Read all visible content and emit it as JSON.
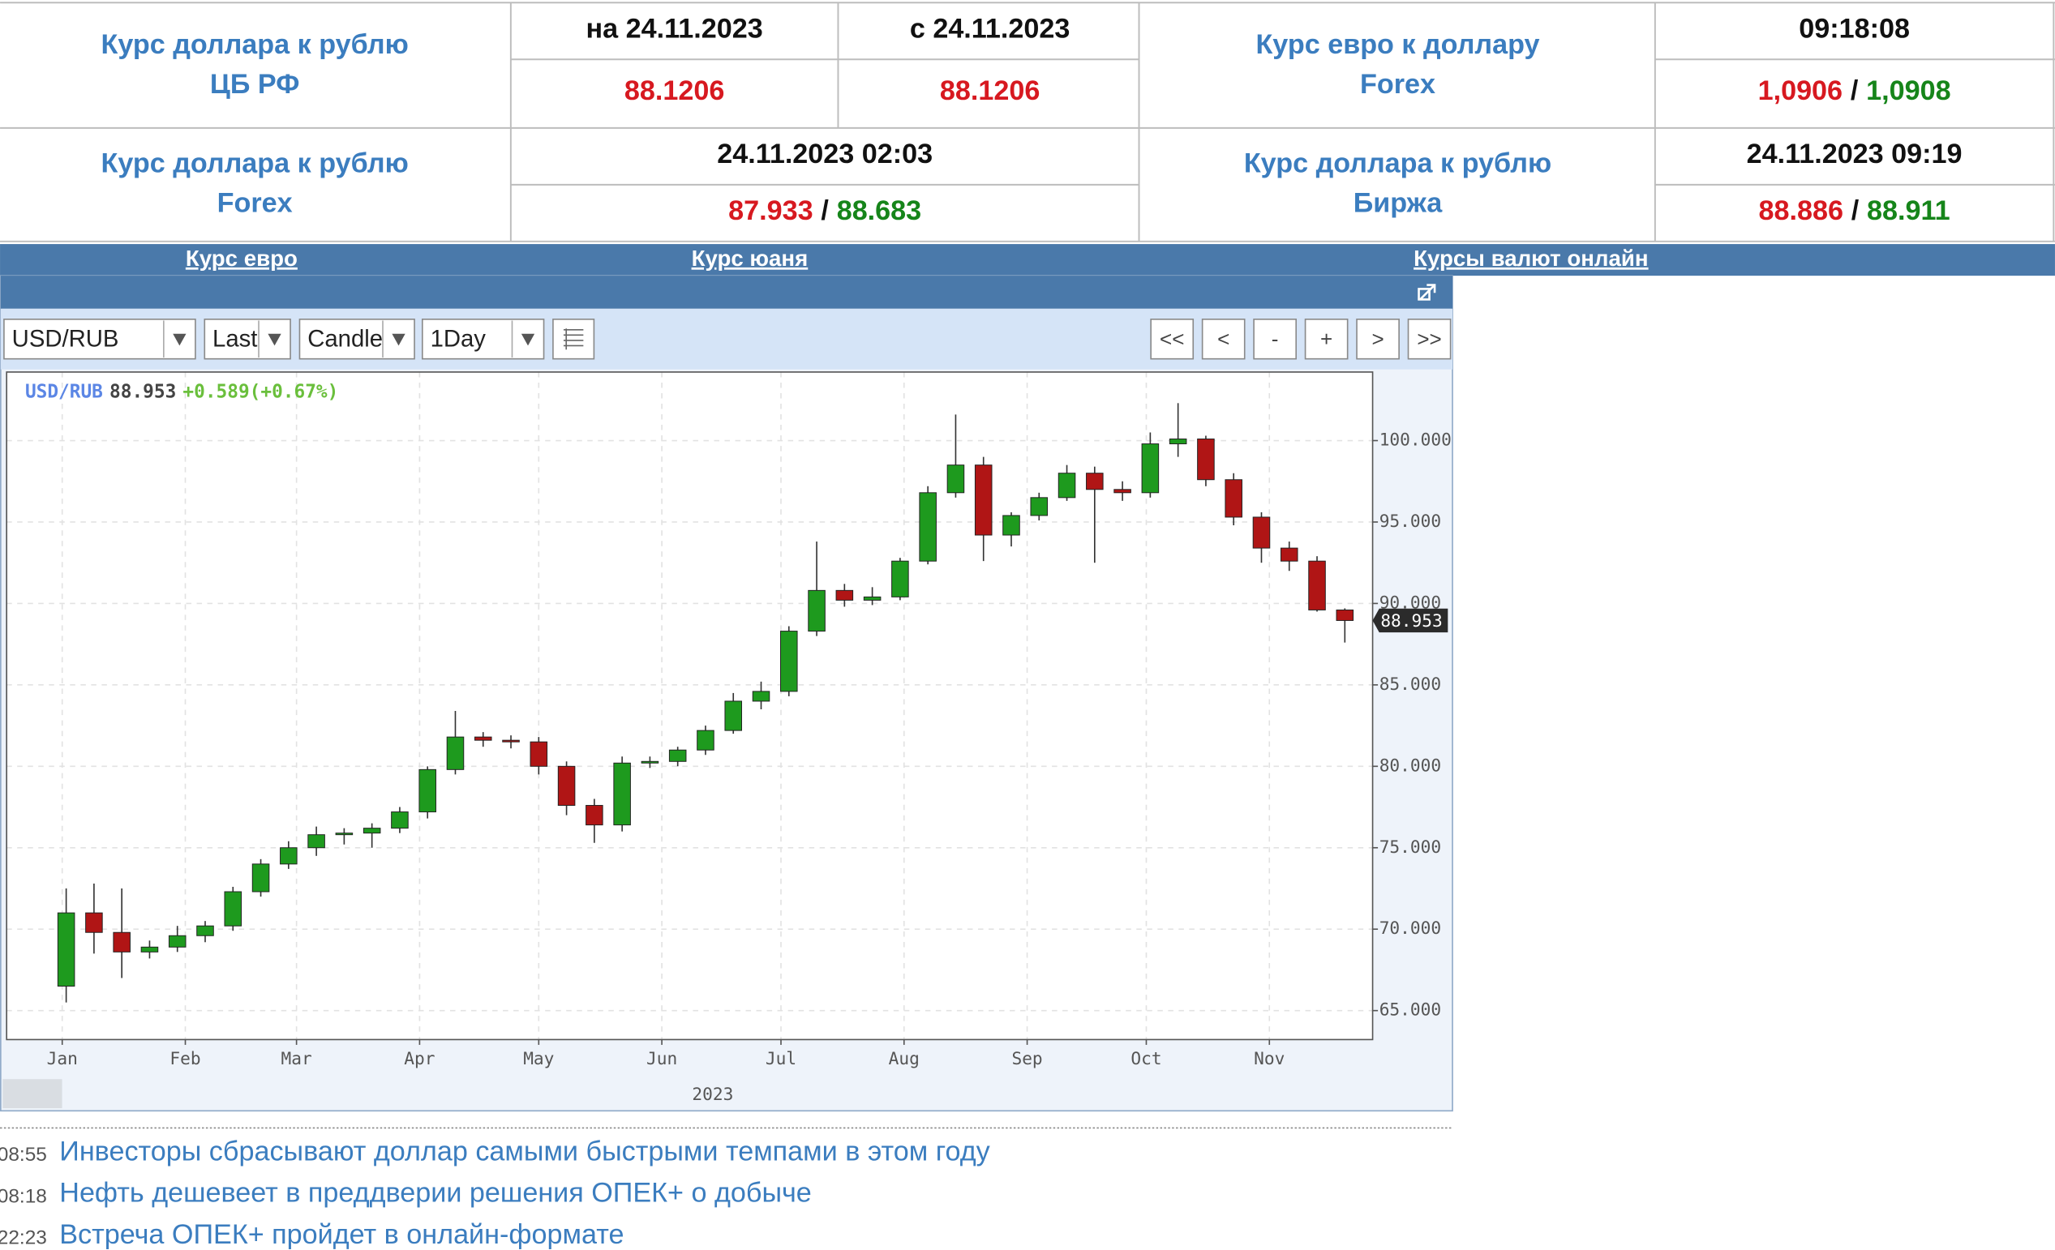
{
  "header_table": {
    "separator": "/",
    "cbr": {
      "title": "Курс доллара к рублю",
      "source": "ЦБ РФ",
      "date_1": "на 24.11.2023",
      "date_2": "с 24.11.2023",
      "rate_1": "88.1206",
      "rate_2": "88.1206"
    },
    "eurusd": {
      "title": "Курс евро к доллару",
      "source": "Forex",
      "time": "09:18:08",
      "bid": "1,0906",
      "ask": "1,0908"
    },
    "usdrub_forex": {
      "title": "Курс доллара к рублю",
      "source": "Forex",
      "time": "24.11.2023 02:03",
      "bid": "87.933",
      "ask": "88.683"
    },
    "usdrub_exchange": {
      "title": "Курс доллара к рублю",
      "source": "Биржа",
      "time": "24.11.2023 09:19",
      "bid": "88.886",
      "ask": "88.911"
    }
  },
  "nav": [
    "Курс евро",
    "Курс юаня",
    "Курсы валют онлайн"
  ],
  "toolbar": {
    "symbol": "USD/RUB",
    "field": "Last",
    "chart_kind": "Candle",
    "period": "1Day",
    "buttons": [
      "<<",
      "<",
      "-",
      "+",
      ">",
      ">>"
    ]
  },
  "chart_data": {
    "type": "candlestick",
    "symbol": "USD/RUB",
    "last": 88.953,
    "change": "+0.589(+0.67%)",
    "year_label": "2023",
    "up_color": "#1e9a1e",
    "down_color": "#b01515",
    "grid": true,
    "x": [
      2,
      9,
      16,
      23,
      30,
      37,
      44,
      51,
      58,
      65,
      72,
      79,
      86,
      93,
      100,
      107,
      114,
      121,
      128,
      135,
      142,
      149,
      156,
      163,
      170,
      177,
      184,
      191,
      198,
      205,
      212,
      219,
      226,
      233,
      240,
      247,
      254,
      261,
      268,
      275,
      282,
      289,
      296,
      303,
      310,
      317,
      324
    ],
    "open": [
      66.5,
      71.0,
      69.8,
      68.6,
      68.9,
      69.6,
      70.2,
      72.3,
      74.0,
      75.0,
      75.8,
      75.9,
      76.2,
      77.2,
      79.8,
      81.8,
      81.6,
      81.5,
      80.0,
      77.6,
      76.4,
      80.2,
      80.3,
      81.0,
      82.2,
      84.0,
      84.6,
      88.3,
      90.8,
      90.2,
      90.4,
      92.6,
      96.8,
      98.5,
      94.2,
      95.4,
      96.5,
      98.0,
      97.0,
      96.8,
      99.8,
      100.1,
      97.6,
      95.3,
      93.4,
      92.6,
      89.6
    ],
    "high": [
      72.5,
      72.8,
      72.5,
      69.3,
      70.2,
      70.5,
      72.6,
      74.3,
      75.4,
      76.3,
      76.2,
      76.5,
      77.5,
      80.0,
      83.4,
      82.1,
      81.9,
      81.8,
      80.3,
      78.0,
      80.6,
      80.6,
      81.2,
      82.5,
      84.5,
      85.2,
      88.6,
      93.8,
      91.2,
      91.0,
      92.8,
      97.2,
      101.6,
      99.0,
      95.6,
      96.8,
      98.5,
      98.4,
      97.5,
      100.5,
      102.3,
      100.3,
      98.0,
      95.6,
      93.8,
      92.9,
      89.7
    ],
    "low": [
      65.5,
      68.5,
      67.0,
      68.2,
      68.6,
      69.2,
      69.9,
      72.0,
      73.7,
      74.5,
      75.2,
      75.0,
      75.9,
      76.8,
      79.5,
      81.2,
      81.1,
      79.5,
      77.0,
      75.3,
      76.0,
      79.9,
      80.0,
      80.7,
      82.0,
      83.5,
      84.3,
      88.0,
      89.8,
      89.9,
      90.2,
      92.4,
      96.5,
      92.6,
      93.5,
      95.1,
      96.3,
      92.5,
      96.3,
      96.5,
      99.0,
      97.2,
      94.8,
      92.5,
      92.0,
      89.5,
      87.6
    ],
    "close": [
      71.0,
      69.8,
      68.6,
      68.9,
      69.6,
      70.2,
      72.3,
      74.0,
      75.0,
      75.8,
      75.9,
      76.2,
      77.2,
      79.8,
      81.8,
      81.6,
      81.5,
      80.0,
      77.6,
      76.4,
      80.2,
      80.3,
      81.0,
      82.2,
      84.0,
      84.6,
      88.3,
      90.8,
      90.2,
      90.4,
      92.6,
      96.8,
      98.5,
      94.2,
      95.4,
      96.5,
      98.0,
      97.0,
      96.8,
      99.8,
      100.1,
      97.6,
      95.3,
      93.4,
      92.6,
      89.6,
      88.953
    ],
    "xlim": [
      -13,
      331
    ],
    "xticks": [
      {
        "value": 1,
        "label": "Jan"
      },
      {
        "value": 32,
        "label": "Feb"
      },
      {
        "value": 60,
        "label": "Mar"
      },
      {
        "value": 91,
        "label": "Apr"
      },
      {
        "value": 121,
        "label": "May"
      },
      {
        "value": 152,
        "label": "Jun"
      },
      {
        "value": 182,
        "label": "Jul"
      },
      {
        "value": 213,
        "label": "Aug"
      },
      {
        "value": 244,
        "label": "Sep"
      },
      {
        "value": 274,
        "label": "Oct"
      },
      {
        "value": 305,
        "label": "Nov"
      }
    ],
    "ylim": [
      63.22,
      104.21
    ],
    "yticks": [
      {
        "value": 65,
        "label": "65.000"
      },
      {
        "value": 70,
        "label": "70.000"
      },
      {
        "value": 75,
        "label": "75.000"
      },
      {
        "value": 80,
        "label": "80.000"
      },
      {
        "value": 85,
        "label": "85.000"
      },
      {
        "value": 90,
        "label": "90.000"
      },
      {
        "value": 95,
        "label": "95.000"
      },
      {
        "value": 100,
        "label": "100.000"
      }
    ]
  },
  "news": [
    {
      "time": "08:55",
      "title": "Инвесторы сбрасывают доллар самыми быстрыми темпами в этом году"
    },
    {
      "time": "08:18",
      "title": "Нефть дешевеет в преддверии решения ОПЕК+ о добыче"
    },
    {
      "time": "22:23",
      "title": "Встреча ОПЕК+ пройдет в онлайн-формате"
    }
  ]
}
